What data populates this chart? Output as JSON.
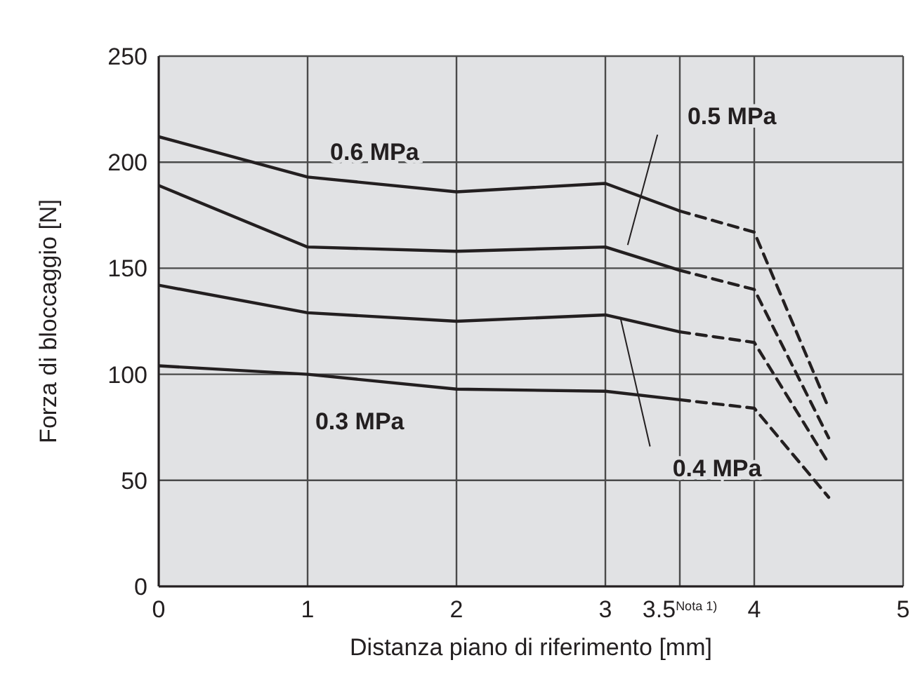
{
  "chart_data": {
    "type": "line",
    "xlabel": "Distanza piano di riferimento [mm]",
    "ylabel": "Forza di bloccaggio [N]",
    "xlim": [
      0,
      5
    ],
    "xticks": [
      0,
      1,
      2,
      3,
      {
        "value": 3.5,
        "label": "3.5$^{Nota 1)}$"
      },
      4,
      5
    ],
    "ylim": [
      0,
      250
    ],
    "yticks": [
      0,
      50,
      100,
      150,
      200,
      250
    ],
    "grid": true,
    "marker": "none",
    "series": [
      {
        "name": "0.6 MPa",
        "color": "#231f20",
        "line_style": "solid",
        "x": [
          0,
          1,
          2,
          3,
          3.5
        ],
        "values": [
          212,
          193,
          186,
          190,
          177
        ]
      },
      {
        "name": "0.5 MPa",
        "color": "#231f20",
        "line_style": "solid",
        "x": [
          0,
          1,
          2,
          3,
          3.5
        ],
        "values": [
          189,
          160,
          158,
          160,
          149
        ]
      },
      {
        "name": "0.4 MPa",
        "color": "#231f20",
        "line_style": "solid",
        "x": [
          0,
          1,
          2,
          3,
          3.5
        ],
        "values": [
          142,
          129,
          125,
          128,
          120
        ]
      },
      {
        "name": "0.3 MPa",
        "color": "#231f20",
        "line_style": "solid",
        "x": [
          0,
          1,
          2,
          3,
          3.5
        ],
        "values": [
          104,
          100,
          93,
          92,
          88
        ]
      },
      {
        "color": "#231f20",
        "line_style": "dashed",
        "x": [
          3.5,
          4,
          4.5
        ],
        "values": [
          177,
          167,
          84
        ]
      },
      {
        "color": "#231f20",
        "line_style": "dashed",
        "x": [
          3.5,
          4,
          4.5
        ],
        "values": [
          149,
          140,
          70
        ]
      },
      {
        "color": "#231f20",
        "line_style": "dashed",
        "x": [
          3.5,
          4,
          4.5
        ],
        "values": [
          120,
          115,
          58
        ]
      },
      {
        "color": "#231f20",
        "line_style": "dashed",
        "x": [
          3.5,
          4,
          4.5
        ],
        "values": [
          88,
          84,
          42
        ]
      }
    ]
  }
}
